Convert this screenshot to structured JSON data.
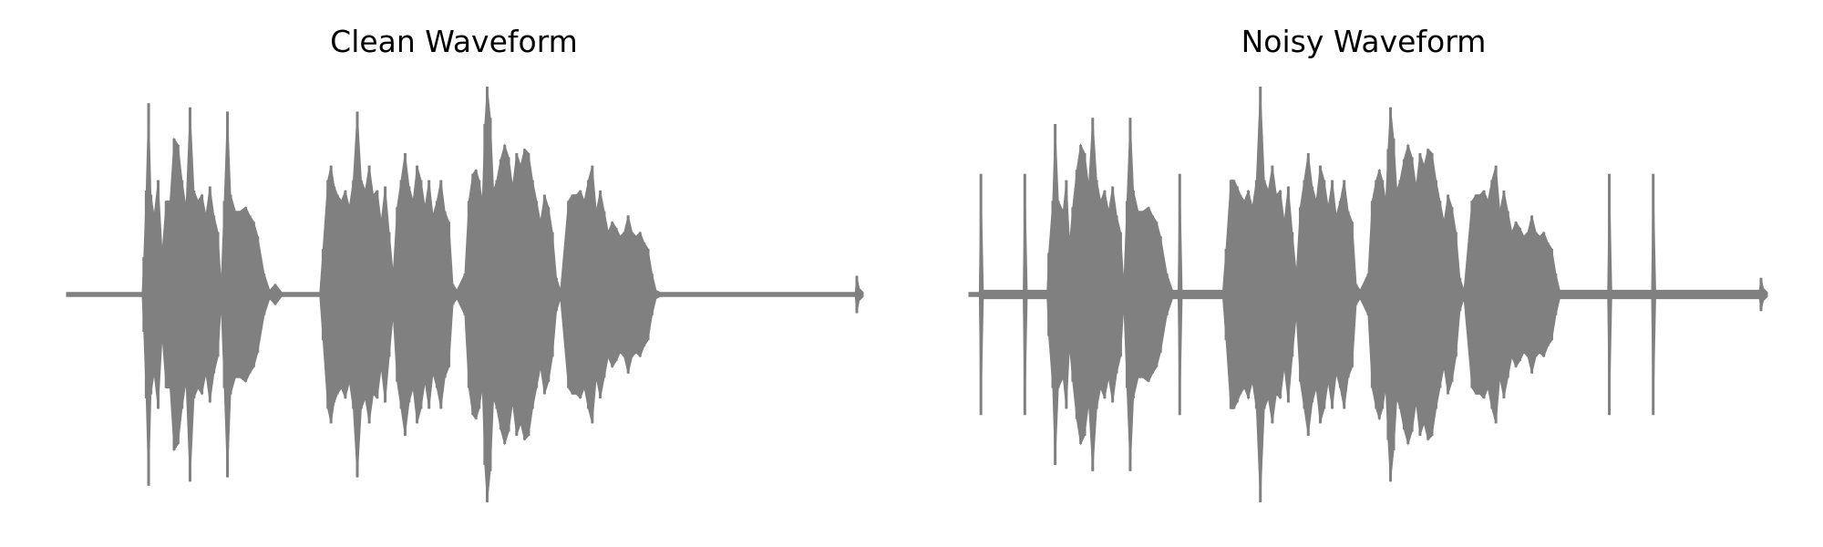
{
  "colors": {
    "waveform": "#808080",
    "background": "#ffffff",
    "title": "#000000"
  },
  "chart_data": [
    {
      "type": "line",
      "title": "Clean Waveform",
      "axes_visible": false,
      "grid": false,
      "ylim": [
        -1.0,
        1.0
      ],
      "xlim": [
        0.0,
        1.0
      ],
      "series": [
        {
          "values": [
            [
              0.0,
              0.01
            ],
            [
              0.095,
              0.01
            ],
            [
              0.097,
              0.18
            ],
            [
              0.1,
              0.5
            ],
            [
              0.103,
              0.92
            ],
            [
              0.106,
              0.48
            ],
            [
              0.11,
              0.38
            ],
            [
              0.115,
              0.55
            ],
            [
              0.12,
              0.2
            ],
            [
              0.125,
              0.45
            ],
            [
              0.13,
              0.45
            ],
            [
              0.135,
              0.75
            ],
            [
              0.14,
              0.72
            ],
            [
              0.145,
              0.55
            ],
            [
              0.15,
              0.42
            ],
            [
              0.155,
              0.9
            ],
            [
              0.16,
              0.5
            ],
            [
              0.165,
              0.45
            ],
            [
              0.17,
              0.48
            ],
            [
              0.175,
              0.38
            ],
            [
              0.18,
              0.52
            ],
            [
              0.185,
              0.38
            ],
            [
              0.19,
              0.3
            ],
            [
              0.194,
              0.05
            ],
            [
              0.198,
              0.45
            ],
            [
              0.202,
              0.88
            ],
            [
              0.206,
              0.48
            ],
            [
              0.212,
              0.4
            ],
            [
              0.218,
              0.4
            ],
            [
              0.225,
              0.42
            ],
            [
              0.23,
              0.38
            ],
            [
              0.235,
              0.35
            ],
            [
              0.24,
              0.28
            ],
            [
              0.248,
              0.1
            ],
            [
              0.255,
              0.02
            ],
            [
              0.262,
              0.05
            ],
            [
              0.27,
              0.01
            ],
            [
              0.318,
              0.01
            ],
            [
              0.322,
              0.22
            ],
            [
              0.328,
              0.55
            ],
            [
              0.332,
              0.62
            ],
            [
              0.336,
              0.52
            ],
            [
              0.34,
              0.48
            ],
            [
              0.345,
              0.45
            ],
            [
              0.35,
              0.5
            ],
            [
              0.355,
              0.42
            ],
            [
              0.36,
              0.55
            ],
            [
              0.365,
              0.88
            ],
            [
              0.37,
              0.55
            ],
            [
              0.375,
              0.5
            ],
            [
              0.38,
              0.62
            ],
            [
              0.385,
              0.48
            ],
            [
              0.39,
              0.5
            ],
            [
              0.395,
              0.35
            ],
            [
              0.4,
              0.52
            ],
            [
              0.405,
              0.3
            ],
            [
              0.41,
              0.1
            ],
            [
              0.415,
              0.42
            ],
            [
              0.42,
              0.55
            ],
            [
              0.425,
              0.68
            ],
            [
              0.43,
              0.52
            ],
            [
              0.435,
              0.45
            ],
            [
              0.44,
              0.62
            ],
            [
              0.445,
              0.55
            ],
            [
              0.45,
              0.42
            ],
            [
              0.455,
              0.55
            ],
            [
              0.46,
              0.38
            ],
            [
              0.465,
              0.45
            ],
            [
              0.47,
              0.55
            ],
            [
              0.475,
              0.4
            ],
            [
              0.48,
              0.35
            ],
            [
              0.485,
              0.05
            ],
            [
              0.49,
              0.02
            ],
            [
              0.5,
              0.1
            ],
            [
              0.505,
              0.45
            ],
            [
              0.51,
              0.58
            ],
            [
              0.514,
              0.6
            ],
            [
              0.518,
              0.55
            ],
            [
              0.522,
              0.45
            ],
            [
              0.525,
              0.82
            ],
            [
              0.528,
              1.0
            ],
            [
              0.532,
              0.85
            ],
            [
              0.536,
              0.5
            ],
            [
              0.54,
              0.55
            ],
            [
              0.545,
              0.65
            ],
            [
              0.55,
              0.72
            ],
            [
              0.555,
              0.66
            ],
            [
              0.56,
              0.52
            ],
            [
              0.565,
              0.68
            ],
            [
              0.57,
              0.62
            ],
            [
              0.575,
              0.7
            ],
            [
              0.58,
              0.68
            ],
            [
              0.585,
              0.55
            ],
            [
              0.59,
              0.45
            ],
            [
              0.595,
              0.35
            ],
            [
              0.6,
              0.48
            ],
            [
              0.605,
              0.42
            ],
            [
              0.61,
              0.3
            ],
            [
              0.615,
              0.08
            ],
            [
              0.62,
              0.02
            ],
            [
              0.63,
              0.45
            ],
            [
              0.635,
              0.48
            ],
            [
              0.64,
              0.48
            ],
            [
              0.645,
              0.5
            ],
            [
              0.65,
              0.45
            ],
            [
              0.655,
              0.55
            ],
            [
              0.66,
              0.62
            ],
            [
              0.665,
              0.4
            ],
            [
              0.67,
              0.5
            ],
            [
              0.675,
              0.4
            ],
            [
              0.68,
              0.3
            ],
            [
              0.685,
              0.35
            ],
            [
              0.69,
              0.32
            ],
            [
              0.695,
              0.28
            ],
            [
              0.7,
              0.3
            ],
            [
              0.705,
              0.38
            ],
            [
              0.71,
              0.3
            ],
            [
              0.715,
              0.28
            ],
            [
              0.72,
              0.3
            ],
            [
              0.725,
              0.25
            ],
            [
              0.73,
              0.22
            ],
            [
              0.735,
              0.1
            ],
            [
              0.74,
              0.02
            ],
            [
              0.745,
              0.01
            ],
            [
              0.99,
              0.01
            ],
            [
              0.992,
              0.09
            ],
            [
              0.995,
              0.03
            ],
            [
              1.0,
              0.01
            ]
          ]
        }
      ]
    },
    {
      "type": "line",
      "title": "Noisy Waveform",
      "axes_visible": false,
      "grid": false,
      "ylim": [
        -1.0,
        1.0
      ],
      "xlim": [
        0.0,
        1.0
      ],
      "series": [
        {
          "values": [
            [
              0.0,
              0.01
            ],
            [
              0.013,
              0.01
            ],
            [
              0.015,
              0.58
            ],
            [
              0.018,
              0.02
            ],
            [
              0.068,
              0.02
            ],
            [
              0.07,
              0.58
            ],
            [
              0.073,
              0.02
            ],
            [
              0.098,
              0.02
            ],
            [
              0.1,
              0.2
            ],
            [
              0.105,
              0.45
            ],
            [
              0.108,
              0.82
            ],
            [
              0.112,
              0.45
            ],
            [
              0.118,
              0.4
            ],
            [
              0.122,
              0.55
            ],
            [
              0.126,
              0.25
            ],
            [
              0.13,
              0.42
            ],
            [
              0.135,
              0.6
            ],
            [
              0.14,
              0.72
            ],
            [
              0.145,
              0.68
            ],
            [
              0.15,
              0.52
            ],
            [
              0.155,
              0.85
            ],
            [
              0.16,
              0.55
            ],
            [
              0.165,
              0.45
            ],
            [
              0.17,
              0.5
            ],
            [
              0.175,
              0.4
            ],
            [
              0.18,
              0.52
            ],
            [
              0.185,
              0.38
            ],
            [
              0.19,
              0.3
            ],
            [
              0.194,
              0.05
            ],
            [
              0.198,
              0.45
            ],
            [
              0.202,
              0.85
            ],
            [
              0.206,
              0.5
            ],
            [
              0.212,
              0.4
            ],
            [
              0.218,
              0.4
            ],
            [
              0.225,
              0.42
            ],
            [
              0.23,
              0.38
            ],
            [
              0.235,
              0.35
            ],
            [
              0.24,
              0.28
            ],
            [
              0.248,
              0.1
            ],
            [
              0.255,
              0.02
            ],
            [
              0.262,
              0.02
            ],
            [
              0.264,
              0.58
            ],
            [
              0.267,
              0.02
            ],
            [
              0.318,
              0.02
            ],
            [
              0.322,
              0.22
            ],
            [
              0.328,
              0.55
            ],
            [
              0.332,
              0.55
            ],
            [
              0.336,
              0.52
            ],
            [
              0.34,
              0.48
            ],
            [
              0.345,
              0.45
            ],
            [
              0.35,
              0.5
            ],
            [
              0.355,
              0.42
            ],
            [
              0.36,
              0.55
            ],
            [
              0.365,
              1.0
            ],
            [
              0.37,
              0.55
            ],
            [
              0.375,
              0.5
            ],
            [
              0.38,
              0.62
            ],
            [
              0.385,
              0.48
            ],
            [
              0.39,
              0.5
            ],
            [
              0.395,
              0.35
            ],
            [
              0.4,
              0.52
            ],
            [
              0.405,
              0.3
            ],
            [
              0.41,
              0.1
            ],
            [
              0.415,
              0.42
            ],
            [
              0.42,
              0.55
            ],
            [
              0.425,
              0.68
            ],
            [
              0.43,
              0.52
            ],
            [
              0.435,
              0.45
            ],
            [
              0.44,
              0.62
            ],
            [
              0.445,
              0.55
            ],
            [
              0.45,
              0.42
            ],
            [
              0.455,
              0.55
            ],
            [
              0.46,
              0.38
            ],
            [
              0.465,
              0.45
            ],
            [
              0.47,
              0.55
            ],
            [
              0.475,
              0.4
            ],
            [
              0.48,
              0.35
            ],
            [
              0.485,
              0.05
            ],
            [
              0.49,
              0.02
            ],
            [
              0.5,
              0.1
            ],
            [
              0.505,
              0.45
            ],
            [
              0.51,
              0.55
            ],
            [
              0.514,
              0.6
            ],
            [
              0.518,
              0.55
            ],
            [
              0.522,
              0.45
            ],
            [
              0.525,
              0.7
            ],
            [
              0.528,
              0.9
            ],
            [
              0.532,
              0.75
            ],
            [
              0.536,
              0.5
            ],
            [
              0.54,
              0.55
            ],
            [
              0.545,
              0.65
            ],
            [
              0.55,
              0.72
            ],
            [
              0.555,
              0.66
            ],
            [
              0.56,
              0.52
            ],
            [
              0.565,
              0.68
            ],
            [
              0.57,
              0.62
            ],
            [
              0.575,
              0.7
            ],
            [
              0.58,
              0.68
            ],
            [
              0.585,
              0.55
            ],
            [
              0.59,
              0.45
            ],
            [
              0.595,
              0.35
            ],
            [
              0.6,
              0.48
            ],
            [
              0.605,
              0.42
            ],
            [
              0.61,
              0.3
            ],
            [
              0.615,
              0.08
            ],
            [
              0.62,
              0.02
            ],
            [
              0.63,
              0.45
            ],
            [
              0.635,
              0.48
            ],
            [
              0.64,
              0.48
            ],
            [
              0.645,
              0.5
            ],
            [
              0.65,
              0.45
            ],
            [
              0.655,
              0.55
            ],
            [
              0.66,
              0.62
            ],
            [
              0.665,
              0.4
            ],
            [
              0.67,
              0.5
            ],
            [
              0.675,
              0.4
            ],
            [
              0.68,
              0.3
            ],
            [
              0.685,
              0.35
            ],
            [
              0.69,
              0.32
            ],
            [
              0.695,
              0.28
            ],
            [
              0.7,
              0.3
            ],
            [
              0.705,
              0.38
            ],
            [
              0.71,
              0.3
            ],
            [
              0.715,
              0.28
            ],
            [
              0.72,
              0.3
            ],
            [
              0.725,
              0.25
            ],
            [
              0.73,
              0.22
            ],
            [
              0.735,
              0.1
            ],
            [
              0.74,
              0.02
            ],
            [
              0.8,
              0.02
            ],
            [
              0.802,
              0.58
            ],
            [
              0.805,
              0.02
            ],
            [
              0.855,
              0.02
            ],
            [
              0.857,
              0.58
            ],
            [
              0.86,
              0.02
            ],
            [
              0.99,
              0.02
            ],
            [
              0.992,
              0.08
            ],
            [
              0.995,
              0.03
            ],
            [
              1.0,
              0.01
            ]
          ]
        }
      ]
    }
  ]
}
